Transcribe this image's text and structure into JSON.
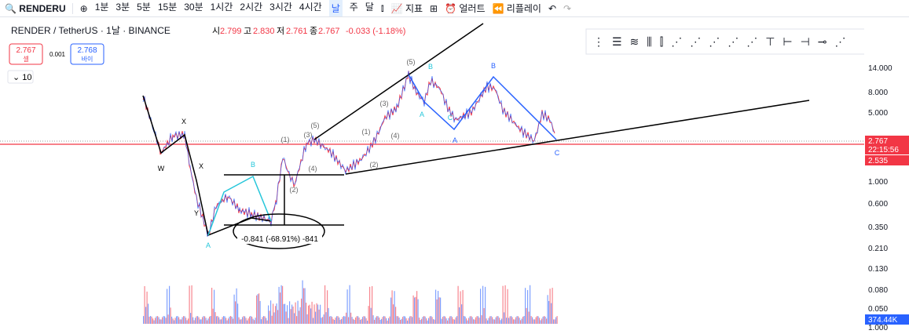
{
  "toolbar": {
    "search": "RENDERU",
    "intervals": [
      "1분",
      "3분",
      "5분",
      "15분",
      "30분",
      "1시간",
      "2시간",
      "3시간",
      "4시간",
      "날",
      "주",
      "달"
    ],
    "indicators": "지표",
    "alert": "얼러트",
    "replay": "리플레이"
  },
  "legend": {
    "symbol": "RENDER / TetherUS · 1날 · BINANCE",
    "open_label": "시",
    "open": "2.799",
    "high_label": "고",
    "high": "2.830",
    "low_label": "저",
    "low": "2.761",
    "close_label": "종",
    "close": "2.767",
    "change": "-0.033 (-1.18%)"
  },
  "trade": {
    "sell": "2.767",
    "sell_label": "셀",
    "spread": "0.001",
    "buy": "2.768",
    "buy_label": "바이"
  },
  "indicator_count": "10",
  "price_axis": [
    "14.000",
    "8.000",
    "5.000",
    "1.000",
    "0.600",
    "0.350",
    "0.210",
    "0.130",
    "0.080",
    "0.050",
    "1.000"
  ],
  "price_tag": {
    "last": "2.767",
    "countdown": "22:15:56",
    "other": "2.535",
    "volume": "374.44K"
  },
  "measure": "-0.841 (-68.91%) -841",
  "waves": {
    "x1": "X",
    "w": "W",
    "x2": "X",
    "y": "Y",
    "a1": "A",
    "b1": "B",
    "p1": "(1)",
    "p2": "(2)",
    "p3": "(3)",
    "p4": "(4)",
    "p5": "(5)",
    "q1": "(1)",
    "q2": "(2)",
    "q3": "(3)",
    "q4": "(4)",
    "q5": "(5)",
    "a2": "A",
    "b2": "B",
    "c2": "C",
    "a3": "A",
    "b3": "B",
    "c3": "C"
  }
}
